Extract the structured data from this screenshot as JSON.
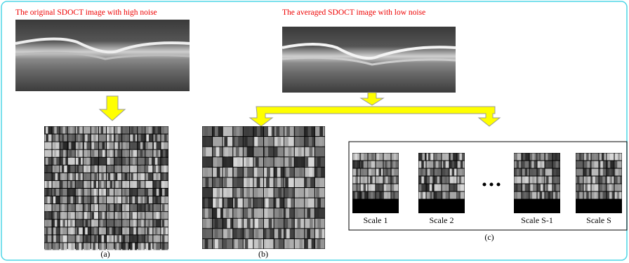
{
  "captions": {
    "original": "The original SDOCT image with high noise",
    "averaged": "The averaged SDOCT image with low noise"
  },
  "panels": [
    {
      "label": "(a)"
    },
    {
      "label": "(b)"
    },
    {
      "label": "(c)",
      "scales": [
        "Scale 1",
        "Scale 2",
        "Scale S-1",
        "Scale S"
      ]
    }
  ]
}
